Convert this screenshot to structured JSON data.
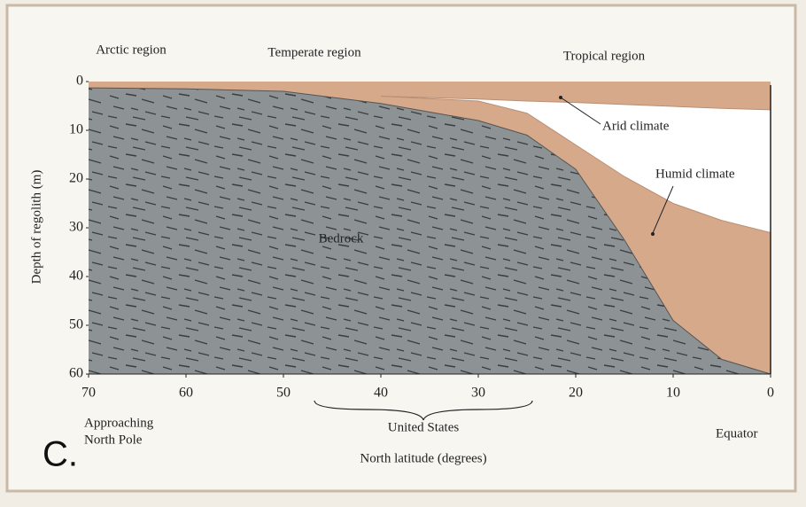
{
  "chart_data": {
    "type": "area",
    "region_labels": [
      "Arctic region",
      "Temperate region",
      "Tropical region"
    ],
    "ylabel": "Depth of regolith (m)",
    "xlabel": "North latitude (degrees)",
    "annotations": {
      "arid": "Arid climate",
      "humid": "Humid climate",
      "bedrock": "Bedrock",
      "united_states": "United States",
      "north_pole": [
        "Approaching",
        "North Pole"
      ],
      "equator": "Equator"
    },
    "panel_label": "C.",
    "x": [
      70,
      60,
      50,
      40,
      30,
      25,
      20,
      15,
      10,
      5,
      0
    ],
    "xlim": [
      70,
      0
    ],
    "xticks": [
      70,
      60,
      50,
      40,
      30,
      20,
      10,
      0
    ],
    "ylim": [
      0,
      60
    ],
    "yticks": [
      0,
      10,
      20,
      30,
      40,
      50,
      60
    ],
    "y_inverted": true,
    "series": [
      {
        "name": "Arid climate",
        "color": "#d6a98b",
        "values": [
          null,
          null,
          null,
          3,
          3.6,
          4,
          4.3,
          4.7,
          5.1,
          5.5,
          5.8
        ]
      },
      {
        "name": "Humid climate",
        "color": "#d6a98b",
        "values": [
          null,
          null,
          null,
          3,
          4,
          6.5,
          13,
          19.5,
          25,
          28.5,
          31
        ]
      },
      {
        "name": "Bedrock",
        "color": "#8d9294",
        "values": [
          1.3,
          1.5,
          2,
          4.5,
          8,
          11,
          18,
          32.5,
          49,
          57,
          60
        ]
      }
    ]
  }
}
